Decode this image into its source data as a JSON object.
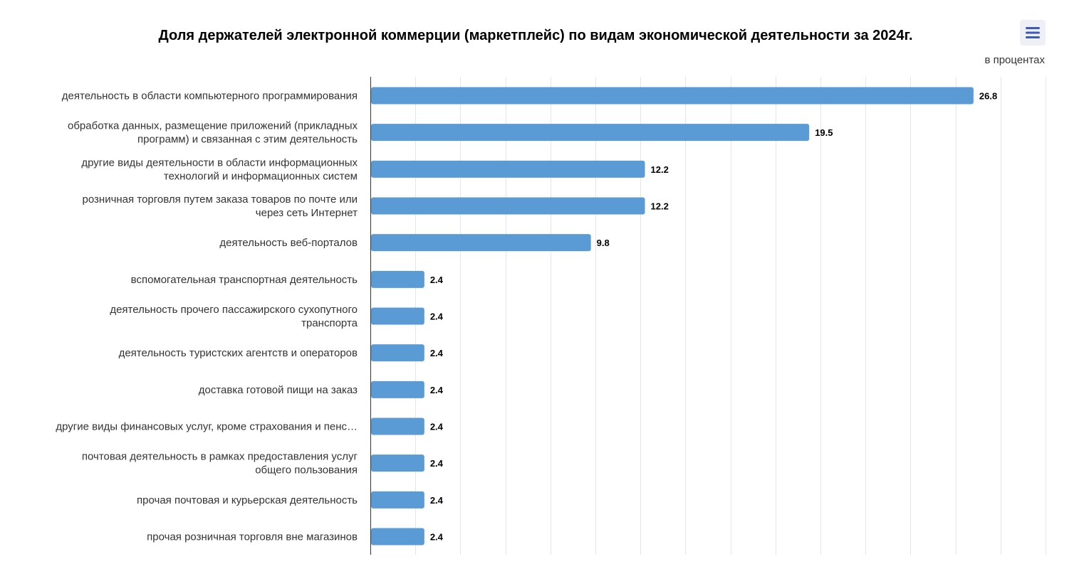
{
  "chart_data": {
    "type": "bar",
    "orientation": "horizontal",
    "title": "Доля держателей электронной коммерции (маркетплейс) по видам экономической деятельности за 2024г.",
    "subtitle": "в процентах",
    "categories": [
      [
        "деятельность в области компьютерного программирования"
      ],
      [
        "обработка данных, размещение приложений (прикладных",
        "программ) и связанная с этим деятельность"
      ],
      [
        "другие виды деятельности в области информационных",
        "технологий и информационных систем"
      ],
      [
        "розничная торговля путем заказа товаров по почте или",
        "через сеть Интернет"
      ],
      [
        "деятельность веб-порталов"
      ],
      [
        "вспомогательная транспортная деятельность"
      ],
      [
        "деятельность прочего пассажирского сухопутного",
        "транспорта"
      ],
      [
        "деятельность туристских агентств и операторов"
      ],
      [
        "доставка готовой пищи на заказ"
      ],
      [
        "другие виды финансовых услуг, кроме страхования и пенс…"
      ],
      [
        "почтовая деятельность в рамках предоставления услуг",
        "общего пользования"
      ],
      [
        "прочая почтовая и курьерская деятельность"
      ],
      [
        "прочая розничная торговля вне магазинов"
      ]
    ],
    "values": [
      26.8,
      19.5,
      12.2,
      12.2,
      9.8,
      2.4,
      2.4,
      2.4,
      2.4,
      2.4,
      2.4,
      2.4,
      2.4
    ],
    "value_labels": [
      "26.8",
      "19.5",
      "12.2",
      "12.2",
      "9.8",
      "2.4",
      "2.4",
      "2.4",
      "2.4",
      "2.4",
      "2.4",
      "2.4",
      "2.4"
    ],
    "xlim": [
      0,
      30
    ],
    "grid_step": 2,
    "grid": true,
    "axis_labels_shown": false,
    "xlabel": "",
    "ylabel": "",
    "legend": "none",
    "colors": {
      "bar": "#5b9bd5",
      "grid": "#e6e6e6",
      "axis": "#333333",
      "label_text": "#333333",
      "value_text": "#000000",
      "title_text": "#000000",
      "menu_icon": "#3c5bb8"
    }
  },
  "controls": {
    "menu_icon": "hamburger-menu-icon"
  }
}
